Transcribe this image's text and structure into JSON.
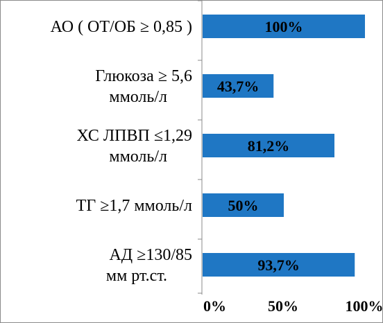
{
  "chart_data": {
    "type": "bar",
    "orientation": "horizontal",
    "categories": [
      [
        "АО ( ОТ/ОБ ≥ 0,85 )"
      ],
      [
        "Глюкоза ≥ 5,6",
        "ммоль/л"
      ],
      [
        "ХС ЛПВП ≤1,29",
        "ммоль/л"
      ],
      [
        "ТГ ≥1,7 ммоль/л"
      ],
      [
        "АД ≥130/85",
        "мм рт.ст."
      ]
    ],
    "values": [
      100,
      43.7,
      81.2,
      50,
      93.7
    ],
    "value_labels": [
      "100%",
      "43,7%",
      "81,2%",
      "50%",
      "93,7%"
    ],
    "xlim": [
      0,
      100
    ],
    "x_ticks": [
      0,
      50,
      100
    ],
    "x_tick_labels": [
      "0%",
      "50%",
      "100%"
    ],
    "bar_color": "#1f77c4",
    "grid": false,
    "legend": "none"
  }
}
